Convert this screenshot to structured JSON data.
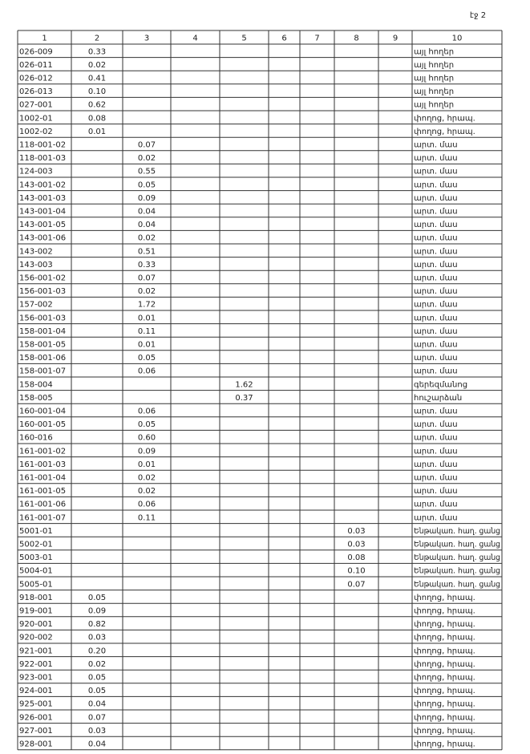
{
  "page_label": "էջ 2",
  "header_columns": [
    "1",
    "2",
    "3",
    "4",
    "5",
    "6",
    "7",
    "8",
    "9",
    "10"
  ],
  "rows": [
    {
      "id": "026-009",
      "column": 2,
      "area": "0.33",
      "use": "այլ հողեր"
    },
    {
      "id": "026-011",
      "column": 2,
      "area": "0.02",
      "use": "այլ հողեր"
    },
    {
      "id": "026-012",
      "column": 2,
      "area": "0.41",
      "use": "այլ հողեր"
    },
    {
      "id": "026-013",
      "column": 2,
      "area": "0.10",
      "use": "այլ հողեր"
    },
    {
      "id": "027-001",
      "column": 2,
      "area": "0.62",
      "use": "այլ հողեր"
    },
    {
      "id": "1002-01",
      "column": 2,
      "area": "0.08",
      "use": "փողոց, հրապ."
    },
    {
      "id": "1002-02",
      "column": 2,
      "area": "0.01",
      "use": "փողոց, հրապ."
    },
    {
      "id": "118-001-02",
      "column": 3,
      "area": "0.07",
      "use": "արտ. մաս"
    },
    {
      "id": "118-001-03",
      "column": 3,
      "area": "0.02",
      "use": "արտ. մաս"
    },
    {
      "id": "124-003",
      "column": 3,
      "area": "0.55",
      "use": "արտ. մաս"
    },
    {
      "id": "143-001-02",
      "column": 3,
      "area": "0.05",
      "use": "արտ. մաս"
    },
    {
      "id": "143-001-03",
      "column": 3,
      "area": "0.09",
      "use": "արտ. մաս"
    },
    {
      "id": "143-001-04",
      "column": 3,
      "area": "0.04",
      "use": "արտ. մաս"
    },
    {
      "id": "143-001-05",
      "column": 3,
      "area": "0.04",
      "use": "արտ. մաս"
    },
    {
      "id": "143-001-06",
      "column": 3,
      "area": "0.02",
      "use": "արտ. մաս"
    },
    {
      "id": "143-002",
      "column": 3,
      "area": "0.51",
      "use": "արտ. մաս"
    },
    {
      "id": "143-003",
      "column": 3,
      "area": "0.33",
      "use": "արտ. մաս"
    },
    {
      "id": "156-001-02",
      "column": 3,
      "area": "0.07",
      "use": "արտ. մաս"
    },
    {
      "id": "156-001-03",
      "column": 3,
      "area": "0.02",
      "use": "արտ. մաս"
    },
    {
      "id": "157-002",
      "column": 3,
      "area": "1.72",
      "use": "արտ. մաս"
    },
    {
      "id": "156-001-03",
      "column": 3,
      "area": "0.01",
      "use": "արտ. մաս"
    },
    {
      "id": "158-001-04",
      "column": 3,
      "area": "0.11",
      "use": "արտ. մաս"
    },
    {
      "id": "158-001-05",
      "column": 3,
      "area": "0.01",
      "use": "արտ. մաս"
    },
    {
      "id": "158-001-06",
      "column": 3,
      "area": "0.05",
      "use": "արտ. մաս"
    },
    {
      "id": "158-001-07",
      "column": 3,
      "area": "0.06",
      "use": "արտ. մաս"
    },
    {
      "id": "158-004",
      "column": 5,
      "area": "1.62",
      "use": "գերեզմանոց"
    },
    {
      "id": "158-005",
      "column": 5,
      "area": "0.37",
      "use": "հուշարձան"
    },
    {
      "id": "160-001-04",
      "column": 3,
      "area": "0.06",
      "use": "արտ. մաս"
    },
    {
      "id": "160-001-05",
      "column": 3,
      "area": "0.05",
      "use": "արտ. մաս"
    },
    {
      "id": "160-016",
      "column": 3,
      "area": "0.60",
      "use": "արտ. մաս"
    },
    {
      "id": "161-001-02",
      "column": 3,
      "area": "0.09",
      "use": "արտ. մաս"
    },
    {
      "id": "161-001-03",
      "column": 3,
      "area": "0.01",
      "use": "արտ. մաս"
    },
    {
      "id": "161-001-04",
      "column": 3,
      "area": "0.02",
      "use": "արտ. մաս"
    },
    {
      "id": "161-001-05",
      "column": 3,
      "area": "0.02",
      "use": "արտ. մաս"
    },
    {
      "id": "161-001-06",
      "column": 3,
      "area": "0.06",
      "use": "արտ. մաս"
    },
    {
      "id": "161-001-07",
      "column": 3,
      "area": "0.11",
      "use": "արտ. մաս"
    },
    {
      "id": "5001-01",
      "column": 8,
      "area": "0.03",
      "use": "Ենթակառ. հաղ. ցանց"
    },
    {
      "id": "5002-01",
      "column": 8,
      "area": "0.03",
      "use": "Ենթակառ. հաղ. ցանց"
    },
    {
      "id": "5003-01",
      "column": 8,
      "area": "0.08",
      "use": "Ենթակառ. հաղ. ցանց"
    },
    {
      "id": "5004-01",
      "column": 8,
      "area": "0.10",
      "use": "Ենթակառ. հաղ. ցանց"
    },
    {
      "id": "5005-01",
      "column": 8,
      "area": "0.07",
      "use": "Ենթակառ. հաղ. ցանց"
    },
    {
      "id": "918-001",
      "column": 2,
      "area": "0.05",
      "use": "փողոց, հրապ."
    },
    {
      "id": "919-001",
      "column": 2,
      "area": "0.09",
      "use": "փողոց, հրապ."
    },
    {
      "id": "920-001",
      "column": 2,
      "area": "0.82",
      "use": "փողոց, հրապ."
    },
    {
      "id": "920-002",
      "column": 2,
      "area": "0.03",
      "use": "փողոց, հրապ."
    },
    {
      "id": "921-001",
      "column": 2,
      "area": "0.20",
      "use": "փողոց, հրապ."
    },
    {
      "id": "922-001",
      "column": 2,
      "area": "0.02",
      "use": "փողոց, հրապ."
    },
    {
      "id": "923-001",
      "column": 2,
      "area": "0.05",
      "use": "փողոց, հրապ."
    },
    {
      "id": "924-001",
      "column": 2,
      "area": "0.05",
      "use": "փողոց, հրապ."
    },
    {
      "id": "925-001",
      "column": 2,
      "area": "0.04",
      "use": "փողոց, հրապ."
    },
    {
      "id": "926-001",
      "column": 2,
      "area": "0.07",
      "use": "փողոց, հրապ."
    },
    {
      "id": "927-001",
      "column": 2,
      "area": "0.03",
      "use": "փողոց, հրապ."
    },
    {
      "id": "928-001",
      "column": 2,
      "area": "0.04",
      "use": "փողոց, հրապ."
    }
  ]
}
